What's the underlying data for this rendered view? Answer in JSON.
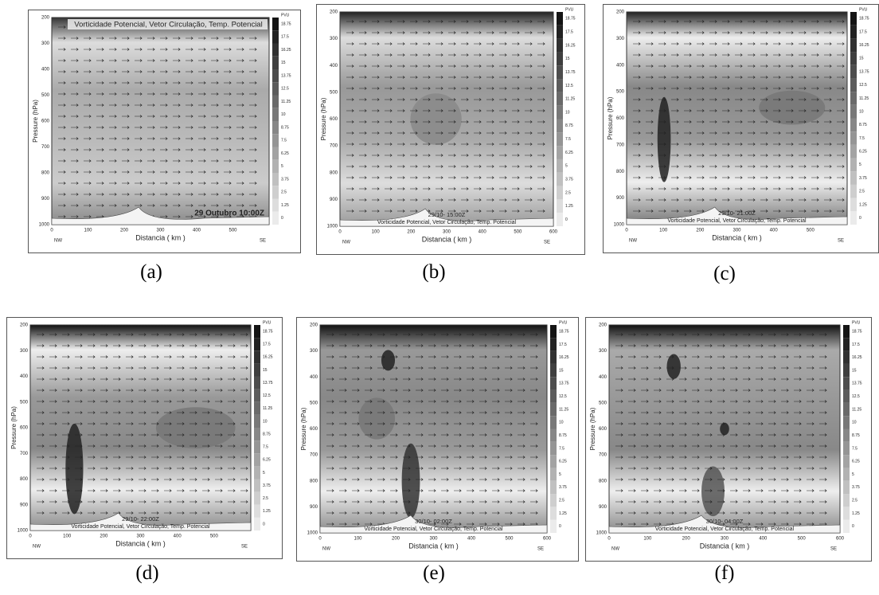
{
  "axis": {
    "y_label": "Pressure (hPa)",
    "x_label": "Distancia ( km )",
    "yticks": [
      "200",
      "300",
      "400",
      "500",
      "600",
      "700",
      "800",
      "900",
      "1000"
    ],
    "left": "NW",
    "right": "SE",
    "unit": "PVU",
    "scale": [
      "18.75",
      "17.5",
      "16.25",
      "15",
      "13.75",
      "12.5",
      "11.25",
      "10",
      "8.75",
      "7.5",
      "6.25",
      "5",
      "3.75",
      "2.5",
      "1.25",
      "0"
    ]
  },
  "panels": [
    {
      "label": "(a)",
      "title": "Vorticidade Potencial, Vetor Circulação, Temp. Potencial",
      "time": "29 Outubro 10:00Z",
      "xticks": [
        "0",
        "100",
        "200",
        "300",
        "400",
        "500"
      ]
    },
    {
      "label": "(b)",
      "title": "Vorticidade Potencial, Vetor Circulação, Temp. Potencial",
      "time": "29/10- 15:00Z",
      "xticks": [
        "0",
        "100",
        "200",
        "300",
        "400",
        "500",
        "600"
      ]
    },
    {
      "label": "(c)",
      "title": "Vorticidade Potencial, Vetor Circulação, Temp. Potencial",
      "time": "29/10- 21:00Z",
      "xticks": [
        "0",
        "100",
        "200",
        "300",
        "400",
        "500"
      ]
    },
    {
      "label": "(d)",
      "title": "Vorticidade Potencial, Vetor Circulação, Temp. Potencial",
      "time": "29/10- 22:00Z",
      "xticks": [
        "0",
        "100",
        "200",
        "300",
        "400",
        "500"
      ]
    },
    {
      "label": "(e)",
      "title": "Vorticidade Potencial, Vetor Circulação, Temp. Potencial",
      "time": "30/10- 02:00Z",
      "xticks": [
        "0",
        "100",
        "200",
        "300",
        "400",
        "500",
        "600"
      ]
    },
    {
      "label": "(f)",
      "title": "Vorticidade Potencial, Vetor Circulação, Temp. Potencial",
      "time": "30/10- 04:00Z",
      "xticks": [
        "0",
        "100",
        "200",
        "300",
        "400",
        "500",
        "600"
      ]
    }
  ]
}
